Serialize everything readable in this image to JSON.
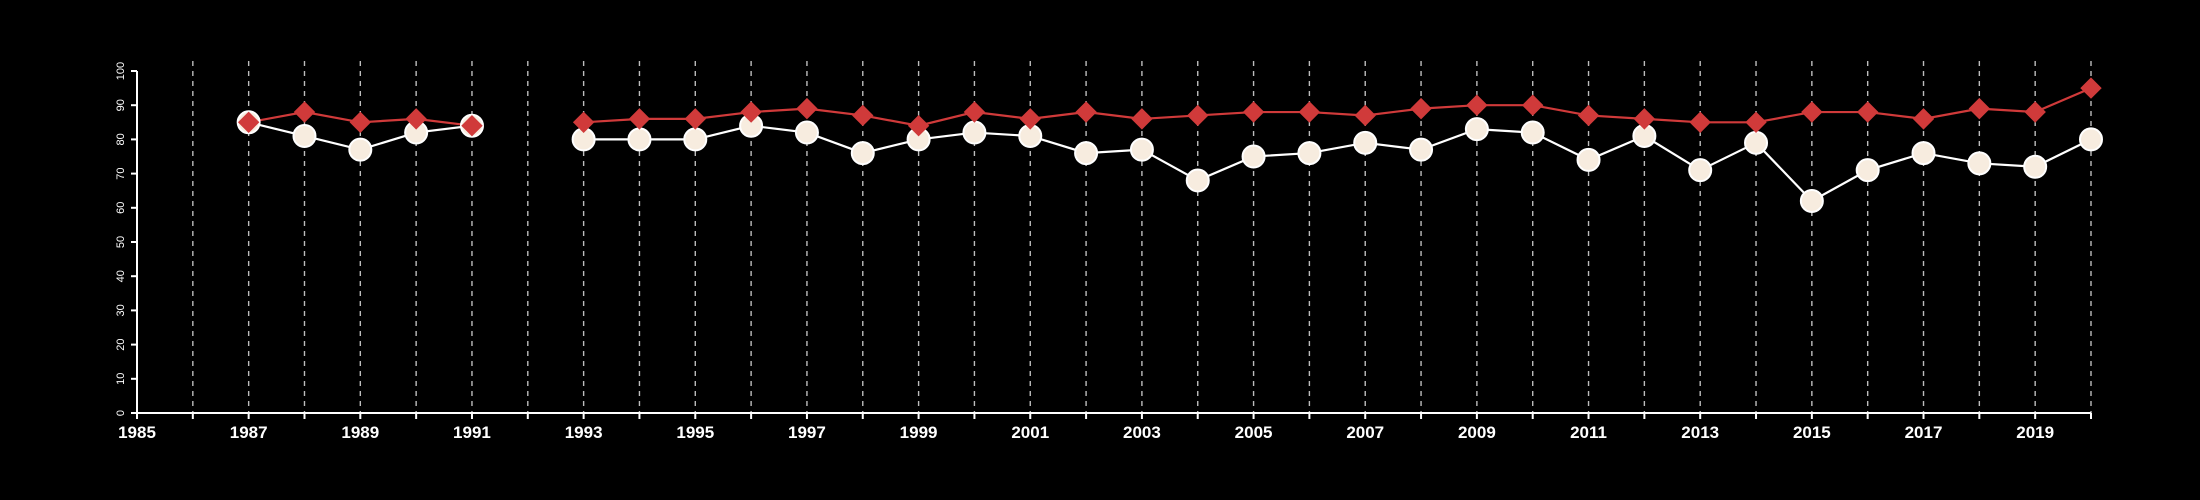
{
  "chart_data": {
    "type": "line",
    "title": "",
    "xlabel": "",
    "ylabel": "",
    "xlim": [
      1985,
      2020
    ],
    "ylim": [
      0,
      100
    ],
    "x_tick_labels": [
      "1985",
      "1987",
      "1989",
      "1991",
      "1993",
      "1995",
      "1997",
      "1999",
      "2001",
      "2003",
      "2005",
      "2007",
      "2009",
      "2011",
      "2013",
      "2015",
      "2017",
      "2019"
    ],
    "y_tick_labels": [
      "0",
      "10",
      "20",
      "30",
      "40",
      "50",
      "60",
      "70",
      "80",
      "90",
      "100"
    ],
    "grid": "vertical dashed lines at every year",
    "background_color": "#000000",
    "axis_color": "#ffffff",
    "grid_color": "#bdbdbd",
    "series": [
      {
        "marker": "circle",
        "color": "#ffffff",
        "fill": "#f7ecdf",
        "points": [
          [
            1987,
            85
          ],
          [
            1988,
            81
          ],
          [
            1989,
            77
          ],
          [
            1990,
            82
          ],
          [
            1991,
            84
          ],
          [
            1993,
            80
          ],
          [
            1994,
            80
          ],
          [
            1995,
            80
          ],
          [
            1996,
            84
          ],
          [
            1997,
            82
          ],
          [
            1998,
            76
          ],
          [
            1999,
            80
          ],
          [
            2000,
            82
          ],
          [
            2001,
            81
          ],
          [
            2002,
            76
          ],
          [
            2003,
            77
          ],
          [
            2004,
            68
          ],
          [
            2005,
            75
          ],
          [
            2006,
            76
          ],
          [
            2007,
            79
          ],
          [
            2008,
            77
          ],
          [
            2009,
            83
          ],
          [
            2010,
            82
          ],
          [
            2011,
            74
          ],
          [
            2012,
            81
          ],
          [
            2013,
            71
          ],
          [
            2014,
            79
          ],
          [
            2015,
            62
          ],
          [
            2016,
            71
          ],
          [
            2017,
            76
          ],
          [
            2018,
            73
          ],
          [
            2019,
            72
          ],
          [
            2020,
            80
          ]
        ]
      },
      {
        "marker": "diamond",
        "color": "#d03a3a",
        "fill": "#d03a3a",
        "points": [
          [
            1987,
            85
          ],
          [
            1988,
            88
          ],
          [
            1989,
            85
          ],
          [
            1990,
            86
          ],
          [
            1991,
            84
          ],
          [
            1993,
            85
          ],
          [
            1994,
            86
          ],
          [
            1995,
            86
          ],
          [
            1996,
            88
          ],
          [
            1997,
            89
          ],
          [
            1998,
            87
          ],
          [
            1999,
            84
          ],
          [
            2000,
            88
          ],
          [
            2001,
            86
          ],
          [
            2002,
            88
          ],
          [
            2003,
            86
          ],
          [
            2004,
            87
          ],
          [
            2005,
            88
          ],
          [
            2006,
            88
          ],
          [
            2007,
            87
          ],
          [
            2008,
            89
          ],
          [
            2009,
            90
          ],
          [
            2010,
            90
          ],
          [
            2011,
            87
          ],
          [
            2012,
            86
          ],
          [
            2013,
            85
          ],
          [
            2014,
            85
          ],
          [
            2015,
            88
          ],
          [
            2016,
            88
          ],
          [
            2017,
            86
          ],
          [
            2018,
            89
          ],
          [
            2019,
            88
          ],
          [
            2020,
            95
          ]
        ]
      }
    ]
  }
}
